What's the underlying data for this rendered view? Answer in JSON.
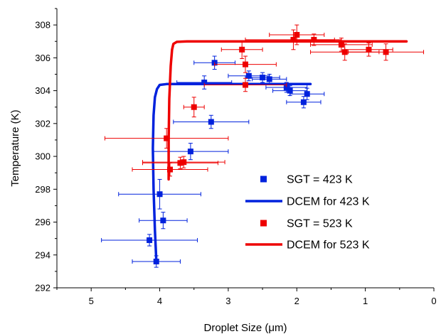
{
  "chart_data": {
    "type": "scatter",
    "xlabel": "Droplet Size (μm)",
    "ylabel": "Temperature (K)",
    "xlim": [
      5.5,
      0
    ],
    "ylim": [
      292,
      309
    ],
    "x_reversed": true,
    "x_ticks": [
      "5",
      "4",
      "3",
      "2",
      "1",
      "0"
    ],
    "y_ticks": [
      "292",
      "294",
      "296",
      "298",
      "300",
      "302",
      "304",
      "306",
      "308"
    ],
    "grid": false,
    "legend_position": "bottom-right",
    "legend": [
      "SGT = 423 K",
      "DCEM for 423 K",
      "SGT = 523 K",
      "DCEM for 523 K"
    ],
    "series": [
      {
        "name": "SGT = 423 K",
        "kind": "scatter",
        "color": "#0022dd",
        "points": [
          {
            "x": 4.05,
            "y": 293.6,
            "xerr": 0.35,
            "yerr": 0.35
          },
          {
            "x": 4.15,
            "y": 294.9,
            "xerr": 0.7,
            "yerr": 0.35
          },
          {
            "x": 3.95,
            "y": 296.1,
            "xerr": 0.35,
            "yerr": 0.5
          },
          {
            "x": 4.0,
            "y": 297.7,
            "xerr": 0.6,
            "yerr": 0.9
          },
          {
            "x": 3.55,
            "y": 300.3,
            "xerr": 0.55,
            "yerr": 0.5
          },
          {
            "x": 3.25,
            "y": 302.1,
            "xerr": 0.55,
            "yerr": 0.4
          },
          {
            "x": 3.35,
            "y": 304.5,
            "xerr": 0.4,
            "yerr": 0.4
          },
          {
            "x": 3.2,
            "y": 305.7,
            "xerr": 0.3,
            "yerr": 0.4
          },
          {
            "x": 2.7,
            "y": 304.9,
            "xerr": 0.3,
            "yerr": 0.3
          },
          {
            "x": 2.5,
            "y": 304.8,
            "xerr": 0.25,
            "yerr": 0.3
          },
          {
            "x": 2.4,
            "y": 304.7,
            "xerr": 0.25,
            "yerr": 0.3
          },
          {
            "x": 2.15,
            "y": 304.2,
            "xerr": 0.3,
            "yerr": 0.3
          },
          {
            "x": 2.1,
            "y": 304.0,
            "xerr": 0.25,
            "yerr": 0.3
          },
          {
            "x": 1.85,
            "y": 303.8,
            "xerr": 0.25,
            "yerr": 0.35
          },
          {
            "x": 1.9,
            "y": 303.3,
            "xerr": 0.25,
            "yerr": 0.35
          }
        ]
      },
      {
        "name": "DCEM for 423 K",
        "kind": "line",
        "color": "#0022dd",
        "x": [
          4.05,
          4.07,
          4.09,
          4.1,
          4.09,
          4.07,
          4.04,
          4.0,
          3.9,
          3.5,
          3.0,
          2.0,
          1.8
        ],
        "y": [
          293.7,
          295.5,
          298.0,
          300.5,
          302.5,
          303.6,
          304.1,
          304.35,
          304.4,
          304.4,
          304.4,
          304.4,
          304.4
        ]
      },
      {
        "name": "SGT = 523 K",
        "kind": "scatter",
        "color": "#ee0000",
        "points": [
          {
            "x": 3.85,
            "y": 299.2,
            "xerr": 0.55,
            "yerr": 0.4
          },
          {
            "x": 3.7,
            "y": 299.6,
            "xerr": 0.55,
            "yerr": 0.35
          },
          {
            "x": 3.65,
            "y": 299.65,
            "xerr": 0.6,
            "yerr": 0.35
          },
          {
            "x": 3.9,
            "y": 301.1,
            "xerr": 0.9,
            "yerr": 0.6
          },
          {
            "x": 3.5,
            "y": 303.0,
            "xerr": 0.15,
            "yerr": 0.6
          },
          {
            "x": 2.75,
            "y": 304.35,
            "xerr": 0.6,
            "yerr": 0.4
          },
          {
            "x": 2.8,
            "y": 306.5,
            "xerr": 0.3,
            "yerr": 0.55
          },
          {
            "x": 2.75,
            "y": 305.6,
            "xerr": 0.45,
            "yerr": 0.5
          },
          {
            "x": 2.05,
            "y": 307.1,
            "xerr": 0.7,
            "yerr": 0.6
          },
          {
            "x": 2.0,
            "y": 307.4,
            "xerr": 0.4,
            "yerr": 0.6
          },
          {
            "x": 1.75,
            "y": 307.1,
            "xerr": 0.3,
            "yerr": 0.35
          },
          {
            "x": 1.35,
            "y": 306.8,
            "xerr": 0.45,
            "yerr": 0.4
          },
          {
            "x": 1.3,
            "y": 306.35,
            "xerr": 0.5,
            "yerr": 0.5
          },
          {
            "x": 0.95,
            "y": 306.5,
            "xerr": 0.35,
            "yerr": 0.4
          },
          {
            "x": 0.7,
            "y": 306.35,
            "xerr": 0.55,
            "yerr": 0.5
          }
        ]
      },
      {
        "name": "DCEM for 523 K",
        "kind": "line",
        "color": "#ee0000",
        "x": [
          3.87,
          3.87,
          3.86,
          3.84,
          3.82,
          3.8,
          3.75,
          3.6,
          3.0,
          2.0,
          1.0,
          0.4
        ],
        "y": [
          298.6,
          301.0,
          303.5,
          305.5,
          306.5,
          306.85,
          306.97,
          307.0,
          307.0,
          307.0,
          307.0,
          307.0
        ]
      }
    ]
  }
}
